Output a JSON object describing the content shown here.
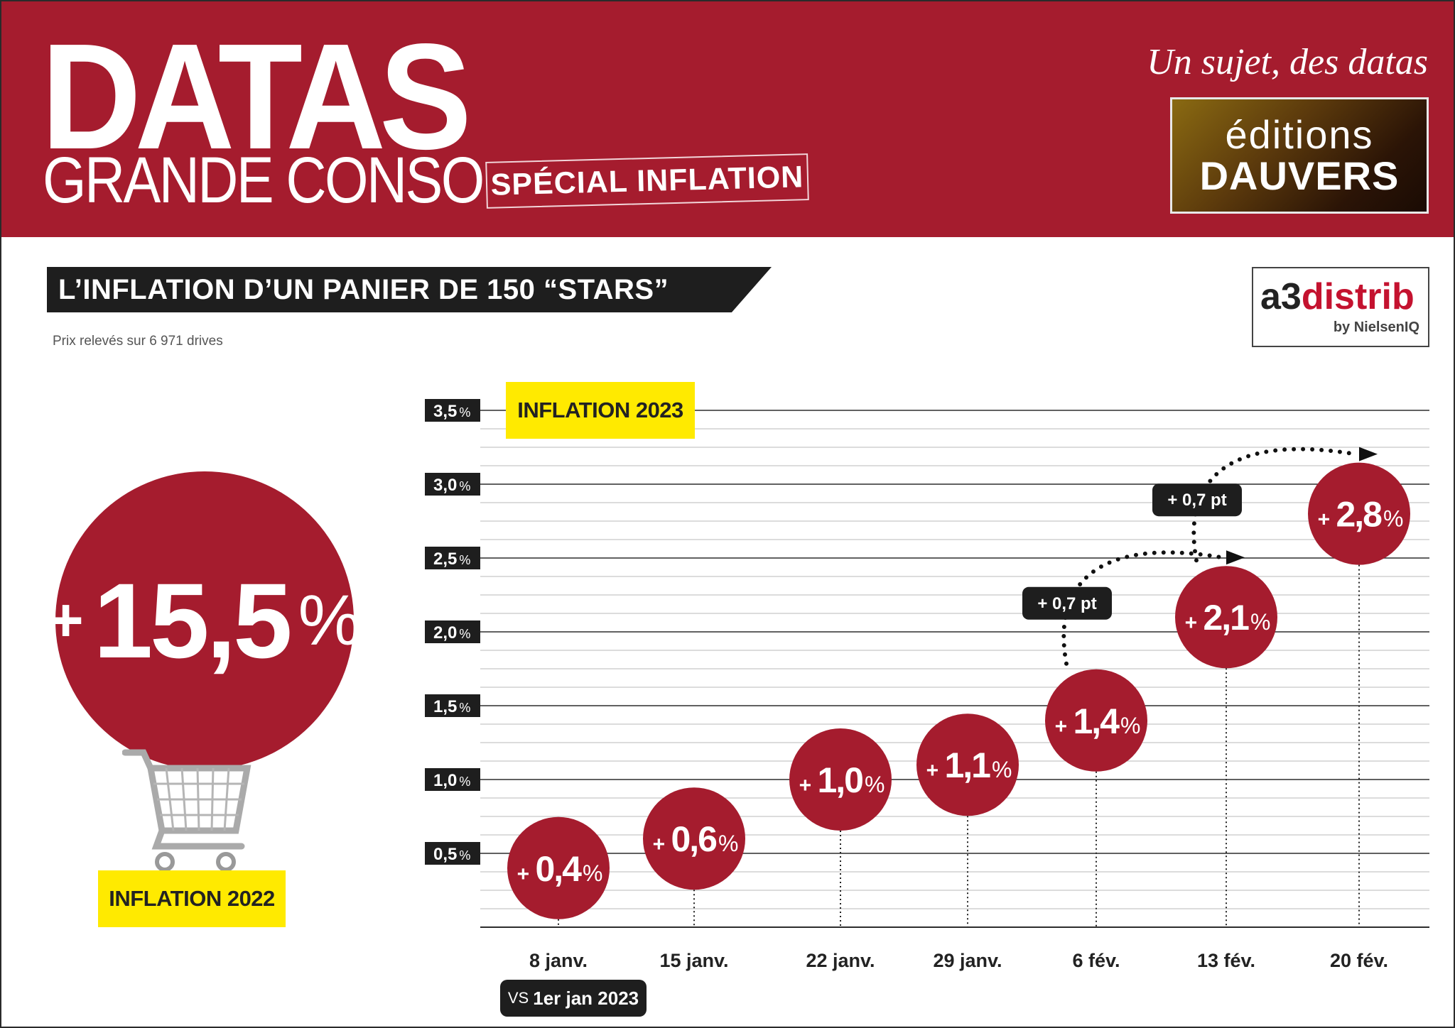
{
  "header": {
    "brand_title": "DATAS",
    "brand_subtitle": "GRANDE CONSO",
    "special_badge": "SPÉCIAL INFLATION",
    "tagline": "Un sujet, des datas",
    "publisher_line1": "éditions",
    "publisher_line2": "DAUVERS"
  },
  "section": {
    "title": "L’INFLATION D’UN PANIER DE 150 “STARS”",
    "subtitle": "Prix relevés sur 6 971 drives"
  },
  "source": {
    "name_a": "a3",
    "name_b": "distrib",
    "by": "by NielsenIQ"
  },
  "annual": {
    "sign": "+",
    "value": "15,5",
    "unit": "%",
    "label": "INFLATION 2022"
  },
  "colors": {
    "brand_red": "#a51c2e",
    "highlight_yellow": "#ffea00",
    "dark": "#1e1e1e"
  },
  "icons": [
    "shopping-cart-icon",
    "arrow-right-icon"
  ],
  "chart_data": {
    "type": "scatter",
    "title": "INFLATION 2023",
    "categories": [
      "8 janv.",
      "15 janv.",
      "22 janv.",
      "29 janv.",
      "6 fév.",
      "13 fév.",
      "20 fév."
    ],
    "series": [
      {
        "name": "INFLATION 2023",
        "values": [
          0.4,
          0.6,
          1.0,
          1.1,
          1.4,
          2.1,
          2.8
        ]
      }
    ],
    "value_labels": [
      "0,4",
      "0,6",
      "1,0",
      "1,1",
      "1,4",
      "2,1",
      "2,8"
    ],
    "yticks": [
      0.5,
      1.0,
      1.5,
      2.0,
      2.5,
      3.0,
      3.5
    ],
    "ytick_labels": [
      "0,5",
      "1,0",
      "1,5",
      "2,0",
      "2,5",
      "3,0",
      "3,5"
    ],
    "ytick_unit": "%",
    "ylim": [
      0,
      3.5
    ],
    "grid": true,
    "annotations": [
      {
        "text": "+ 0,7 pt",
        "from": "6 fév.",
        "to": "13 fév."
      },
      {
        "text": "+ 0,7 pt",
        "from": "13 fév.",
        "to": "20 fév."
      }
    ],
    "base_note_prefix": "VS",
    "base_note_main": "1er jan 2023"
  }
}
